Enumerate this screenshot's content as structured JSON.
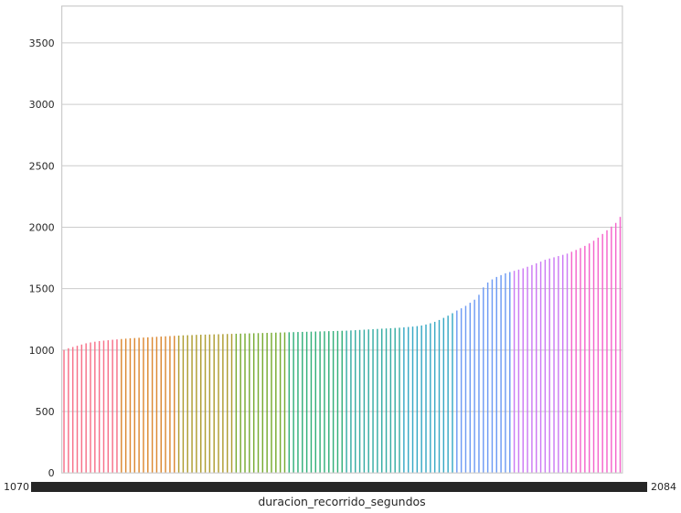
{
  "chart_data": {
    "type": "bar",
    "xlabel": "duracion_recorrido_segundos",
    "ylabel": "",
    "ylim": [
      0,
      3800
    ],
    "yticks": [
      0,
      500,
      1000,
      1500,
      2000,
      2500,
      3000,
      3500
    ],
    "grid": true,
    "x_tick_labels_left": "1070",
    "x_tick_labels_right": "2084",
    "palette": [
      "#f77189",
      "#dc8932",
      "#ae9d31",
      "#77ab31",
      "#33b07a",
      "#36ada4",
      "#38a9c5",
      "#6e9bf4",
      "#cc7af4",
      "#f565cc"
    ],
    "values": [
      1001,
      1015,
      1025,
      1035,
      1045,
      1055,
      1062,
      1068,
      1073,
      1077,
      1080,
      1084,
      1087,
      1090,
      1093,
      1096,
      1098,
      1100,
      1102,
      1104,
      1106,
      1108,
      1110,
      1112,
      1114,
      1116,
      1118,
      1120,
      1121,
      1122,
      1124,
      1125,
      1126,
      1127,
      1128,
      1129,
      1130,
      1131,
      1132,
      1133,
      1134,
      1135,
      1136,
      1137,
      1138,
      1139,
      1140,
      1141,
      1142,
      1143,
      1144,
      1145,
      1146,
      1147,
      1148,
      1149,
      1150,
      1151,
      1152,
      1153,
      1154,
      1155,
      1156,
      1157,
      1158,
      1160,
      1162,
      1164,
      1166,
      1168,
      1170,
      1172,
      1174,
      1176,
      1178,
      1180,
      1182,
      1185,
      1188,
      1191,
      1195,
      1200,
      1208,
      1218,
      1230,
      1245,
      1262,
      1280,
      1300,
      1322,
      1340,
      1360,
      1385,
      1410,
      1450,
      1510,
      1550,
      1575,
      1595,
      1610,
      1625,
      1635,
      1645,
      1655,
      1665,
      1678,
      1692,
      1706,
      1720,
      1735,
      1745,
      1755,
      1765,
      1775,
      1785,
      1800,
      1815,
      1830,
      1848,
      1868,
      1890,
      1915,
      1945,
      1975,
      2005,
      2035,
      2084
    ]
  }
}
